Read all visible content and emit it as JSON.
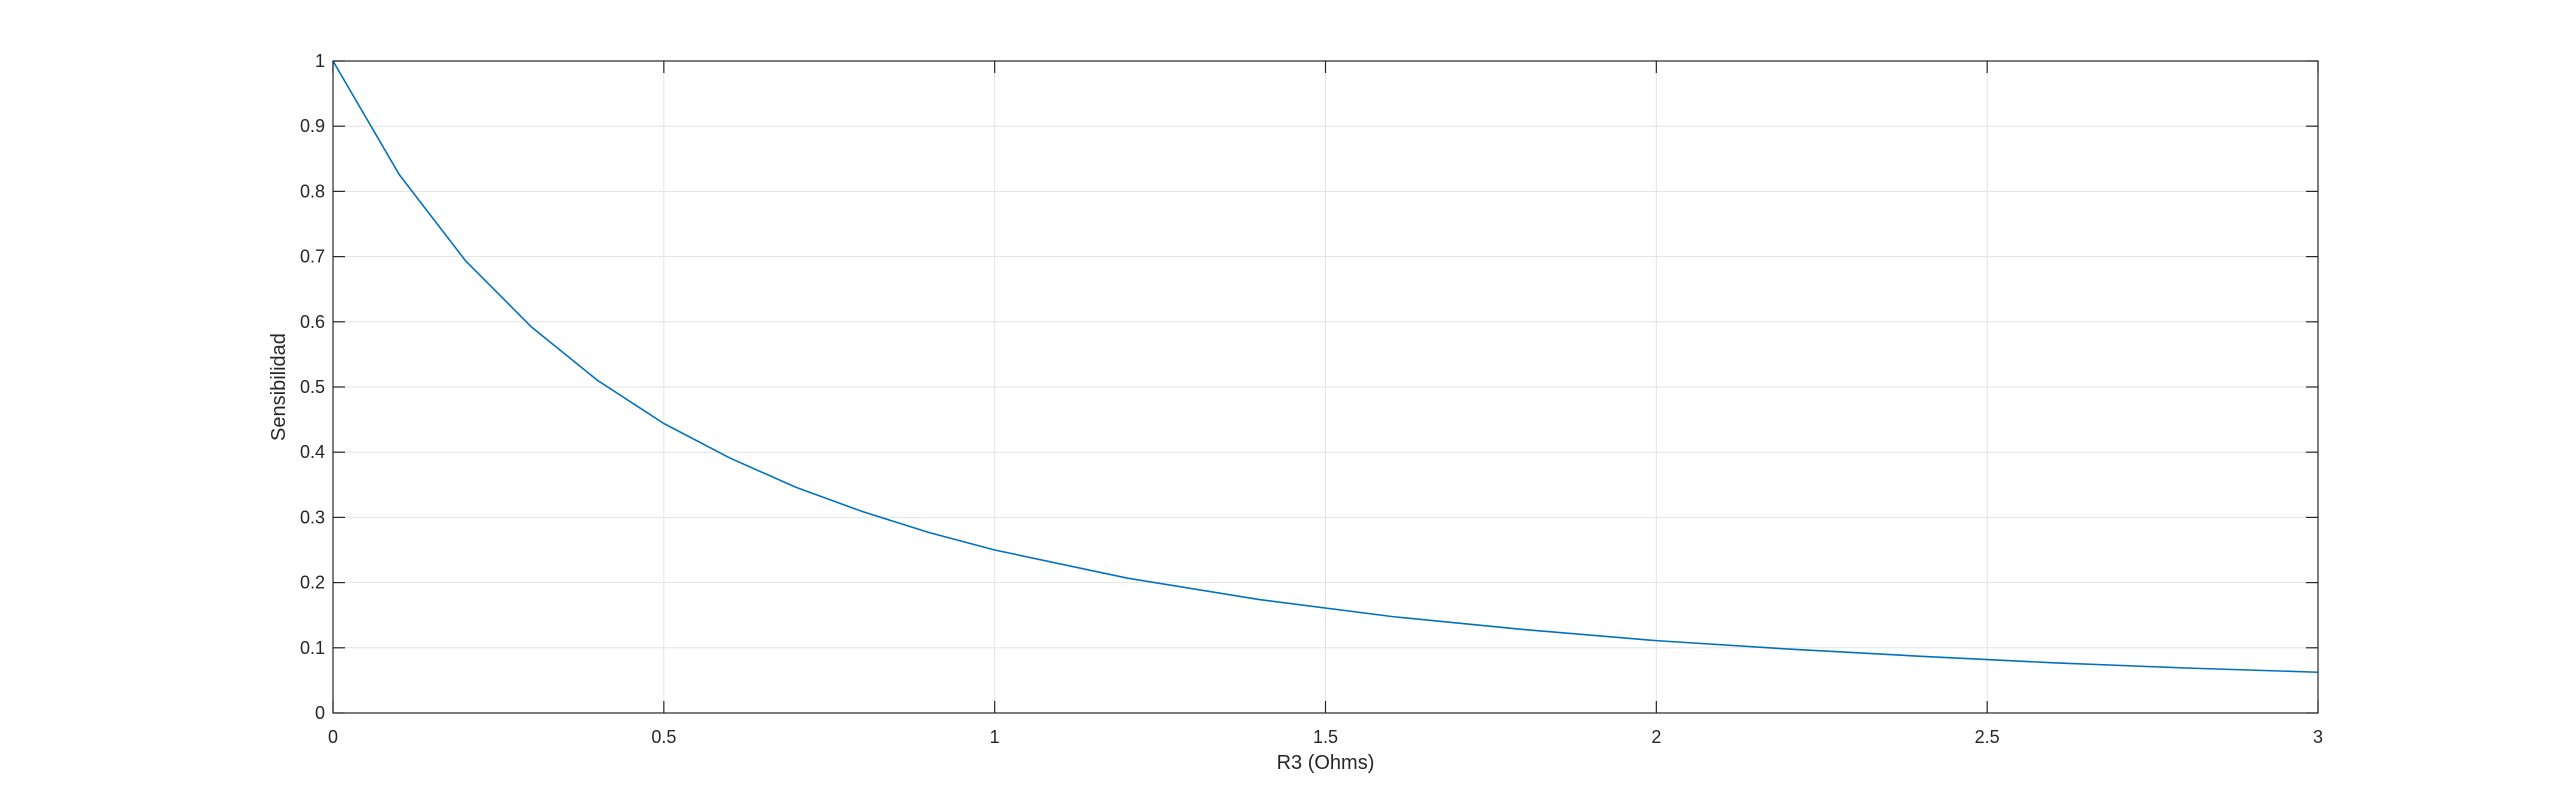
{
  "chart_data": {
    "type": "line",
    "title": "",
    "xlabel": "R3 (Ohms)",
    "ylabel": "Sensibilidad",
    "xlim": [
      0,
      3
    ],
    "ylim": [
      0,
      1
    ],
    "xticks": [
      0,
      0.5,
      1,
      1.5,
      2,
      2.5,
      3
    ],
    "xtick_labels": [
      "0",
      "0.5",
      "1",
      "1.5",
      "2",
      "2.5",
      "3"
    ],
    "yticks": [
      0,
      0.1,
      0.2,
      0.3,
      0.4,
      0.5,
      0.6,
      0.7,
      0.8,
      0.9,
      1
    ],
    "ytick_labels": [
      "0",
      "0.1",
      "0.2",
      "0.3",
      "0.4",
      "0.5",
      "0.6",
      "0.7",
      "0.8",
      "0.9",
      "1"
    ],
    "grid": true,
    "series": [
      {
        "color": "#0072bd",
        "x": [
          0,
          0.1,
          0.2,
          0.3,
          0.4,
          0.5,
          0.6,
          0.7,
          0.8,
          0.9,
          1,
          1.2,
          1.4,
          1.6,
          1.8,
          2,
          2.2,
          2.4,
          2.6,
          2.8,
          3
        ],
        "y": [
          1,
          0.826,
          0.694,
          0.592,
          0.51,
          0.444,
          0.391,
          0.346,
          0.309,
          0.277,
          0.25,
          0.207,
          0.174,
          0.148,
          0.128,
          0.111,
          0.098,
          0.087,
          0.077,
          0.069,
          0.0625
        ]
      }
    ]
  }
}
